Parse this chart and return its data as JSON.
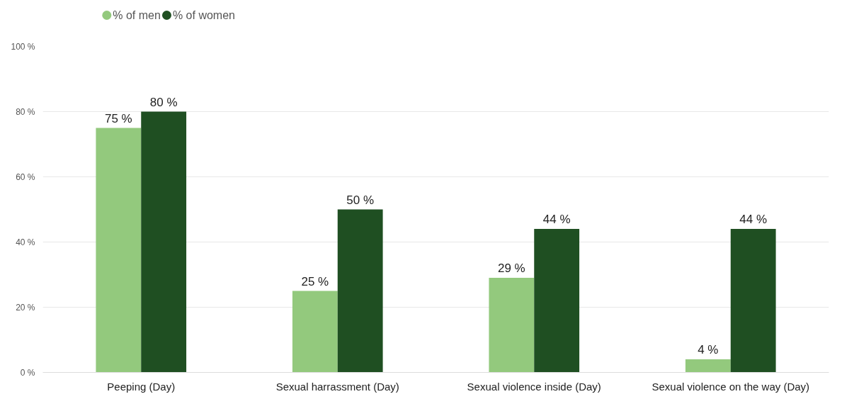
{
  "chart_data": {
    "type": "bar",
    "categories": [
      "Peeping (Day)",
      "Sexual harrassment (Day)",
      "Sexual violence inside (Day)",
      "Sexual violence on the way (Day)"
    ],
    "series": [
      {
        "name": "% of men",
        "color": "#93c97d",
        "values": [
          75,
          25,
          29,
          4
        ],
        "value_labels": [
          "75 %",
          "25 %",
          "29 %",
          "4 %"
        ]
      },
      {
        "name": "% of women",
        "color": "#1f4f22",
        "values": [
          80,
          50,
          44,
          44
        ],
        "value_labels": [
          "80 %",
          "50 %",
          "44 %",
          "44 %"
        ]
      }
    ],
    "ylim": [
      0,
      100
    ],
    "yticks": [
      {
        "value": 0,
        "label": "0 %"
      },
      {
        "value": 20,
        "label": "20 %"
      },
      {
        "value": 40,
        "label": "40 %"
      },
      {
        "value": 60,
        "label": "60 %"
      },
      {
        "value": 80,
        "label": "80 %"
      },
      {
        "value": 100,
        "label": "100 %"
      }
    ],
    "grid": "y",
    "legend": "top left"
  }
}
